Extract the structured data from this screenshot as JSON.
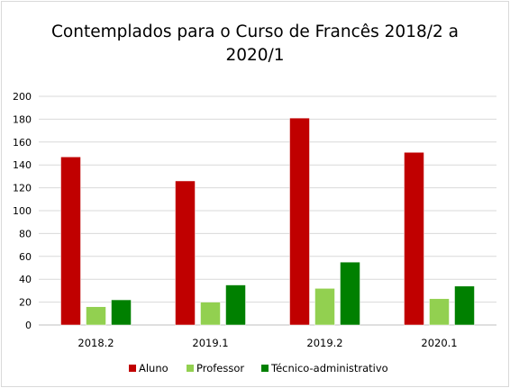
{
  "chart_data": {
    "type": "bar",
    "title": "Contemplados para o Curso de Francês 2018/2 a\n2020/1",
    "categories": [
      "2018.2",
      "2019.1",
      "2019.2",
      "2020.1"
    ],
    "series": [
      {
        "name": "Aluno",
        "values": [
          147,
          126,
          181,
          151
        ],
        "color": "#c00000"
      },
      {
        "name": "Professor",
        "values": [
          16,
          20,
          32,
          23
        ],
        "color": "#92d050"
      },
      {
        "name": "Técnico-administrativo",
        "values": [
          22,
          35,
          55,
          34
        ],
        "color": "#008000"
      }
    ],
    "ylim": [
      0,
      200
    ],
    "yticks": [
      0,
      20,
      40,
      60,
      80,
      100,
      120,
      140,
      160,
      180,
      200
    ],
    "xlabel": "",
    "ylabel": "",
    "grid": true,
    "legend": "bottom-center"
  }
}
